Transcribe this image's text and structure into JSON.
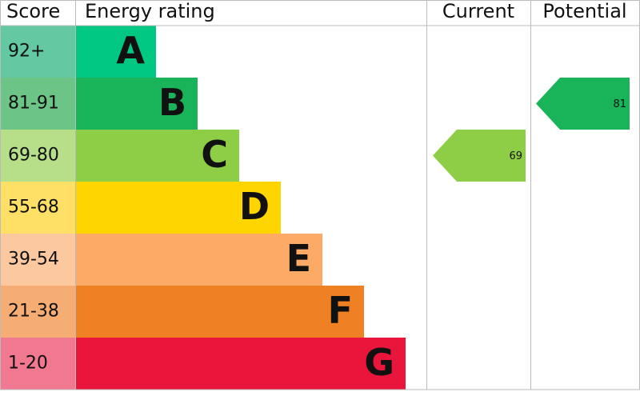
{
  "chart_data": {
    "type": "epc",
    "headers": [
      "Score",
      "Energy rating",
      "Current",
      "Potential"
    ],
    "bands": [
      {
        "score": "92+",
        "rating": "A",
        "color": "#00c781",
        "score_color": "#64c8a2"
      },
      {
        "score": "81-91",
        "rating": "B",
        "color": "#19b459",
        "score_color": "#6dc487"
      },
      {
        "score": "69-80",
        "rating": "C",
        "color": "#8dce46",
        "score_color": "#b7df8a"
      },
      {
        "score": "55-68",
        "rating": "D",
        "color": "#ffd500",
        "score_color": "#ffe066"
      },
      {
        "score": "39-54",
        "rating": "E",
        "color": "#fcaa65",
        "score_color": "#fcc8a0"
      },
      {
        "score": "21-38",
        "rating": "F",
        "color": "#ef8023",
        "score_color": "#f6ad74"
      },
      {
        "score": "1-20",
        "rating": "G",
        "color": "#e9153b",
        "score_color": "#f07890"
      }
    ],
    "current": 69,
    "potential": 81
  }
}
